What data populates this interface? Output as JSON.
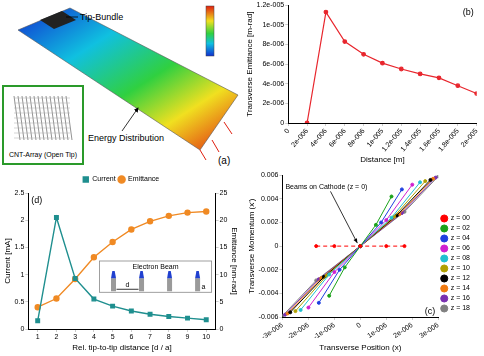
{
  "figure_a": {
    "panel_label": "(a)",
    "tip_label": "Tip-Bundle",
    "inset_label": "CNT-Array (Open Tip)",
    "energy_label": "Energy Distribution"
  },
  "chart_data": [
    {
      "type": "line",
      "panel_label": "(b)",
      "x_label": "Distance [m]",
      "y_label": "Transverse Emittance [m-rad]",
      "x": [
        2e-06,
        4e-06,
        6e-06,
        8e-06,
        1e-05,
        1.2e-05,
        1.4e-05,
        1.6e-05,
        1.8e-05,
        2e-05
      ],
      "values": [
        0,
        1.13e-05,
        8.3e-06,
        7e-06,
        6.1e-06,
        5.5e-06,
        5e-06,
        4.6e-06,
        3.8e-06,
        3e-06
      ],
      "color": "#e8262d",
      "marker": "circle",
      "grid": false,
      "xlim": [
        0,
        2e-05
      ],
      "xticks": [
        0,
        {
          "value": 2e-06,
          "label": "2e-006"
        },
        {
          "value": 4e-06,
          "label": "4e-006"
        },
        {
          "value": 6e-06,
          "label": "6e-006"
        },
        {
          "value": 8e-06,
          "label": "8e-006"
        },
        {
          "value": 1e-05,
          "label": "1e-005"
        },
        {
          "value": 1.2e-05,
          "label": "1.2e-005"
        },
        {
          "value": 1.4e-05,
          "label": "1.4e-005"
        },
        {
          "value": 1.6e-05,
          "label": "1.6e-005"
        },
        {
          "value": 1.8e-05,
          "label": "1.8e-005"
        },
        {
          "value": 2e-05,
          "label": "2e-005"
        }
      ],
      "ylim": [
        0,
        1.2e-05
      ],
      "yticks": [
        0,
        {
          "value": 2e-06,
          "label": "2e-006"
        },
        {
          "value": 4e-06,
          "label": "4e-006"
        },
        {
          "value": 6e-06,
          "label": "6e-006"
        },
        {
          "value": 8e-06,
          "label": "8e-006"
        },
        {
          "value": 1e-05,
          "label": "1e-005"
        },
        {
          "value": 1.2e-05,
          "label": "1.2e-005"
        }
      ]
    },
    {
      "type": "line",
      "panel_label": "(d)",
      "x_label": "Rel. tip-to-tip distance [d / a]",
      "y_label": "Current [mA]",
      "y2_label": "Emittance [nm-rad]",
      "x": [
        1,
        2,
        3,
        4,
        5,
        6,
        7,
        8,
        9,
        10
      ],
      "series": [
        {
          "name": "Current",
          "color": "#1f8f8f",
          "marker": "square",
          "values": [
            0.15,
            2.05,
            0.93,
            0.55,
            0.42,
            0.33,
            0.27,
            0.23,
            0.2,
            0.17
          ]
        },
        {
          "name": "Emittance",
          "color": "#f08a24",
          "marker": "circle",
          "axis": "y2",
          "values": [
            4,
            5.6,
            9.2,
            13.2,
            16,
            18.3,
            19.8,
            20.8,
            21.4,
            21.6
          ]
        }
      ],
      "xlim": [
        0.5,
        10.5
      ],
      "xticks": [
        1,
        2,
        3,
        4,
        5,
        6,
        7,
        8,
        9,
        10
      ],
      "ylim": [
        0,
        2.5
      ],
      "yticks": [
        0,
        0.5,
        1,
        1.5,
        2,
        2.5
      ],
      "y2lim": [
        0,
        25
      ],
      "y2ticks": [
        0,
        5,
        10,
        15,
        20,
        25
      ],
      "legend": "top",
      "grid": false,
      "inset": {
        "title": "Electron Beam",
        "spacing_label": "d",
        "width_label": "a"
      }
    },
    {
      "type": "scatter",
      "panel_label": "(c)",
      "x_label": "Transverse Position (x)",
      "y_label": "Transverse Momentum (x')",
      "annotation": "Beams on Cathode (z = 0)",
      "legend": "right",
      "grid": false,
      "marker": "circle",
      "series": [
        {
          "name": "z = 00",
          "color": "#ff0000",
          "line_style": "dashed",
          "x": [
            -1.7e-06,
            -1e-06,
            0,
            1e-06,
            1.7e-06
          ],
          "values": [
            0,
            0,
            0,
            0,
            0
          ]
        },
        {
          "name": "z = 02",
          "color": "#1aa31a",
          "line_style": "solid",
          "x": [
            -1.2e-06,
            -6e-07,
            0,
            6e-07,
            1.2e-06
          ],
          "values": [
            -0.0042,
            -0.0018,
            0,
            0.0018,
            0.0042
          ]
        },
        {
          "name": "z = 04",
          "color": "#1f3fe0",
          "line_style": "solid",
          "x": [
            -1.6e-06,
            -8e-07,
            0,
            8e-07,
            1.6e-06
          ],
          "values": [
            -0.0048,
            -0.002,
            0,
            0.002,
            0.0048
          ]
        },
        {
          "name": "z = 06",
          "color": "#d020d0",
          "line_style": "solid",
          "x": [
            -2e-06,
            -1e-06,
            0,
            1e-06,
            2e-06
          ],
          "values": [
            -0.0052,
            -0.0022,
            0,
            0.0022,
            0.0052
          ]
        },
        {
          "name": "z = 08",
          "color": "#20c0d0",
          "line_style": "solid",
          "x": [
            -2.3e-06,
            -1.2e-06,
            0,
            1.2e-06,
            2.3e-06
          ],
          "values": [
            -0.0054,
            -0.0024,
            0,
            0.0024,
            0.0054
          ]
        },
        {
          "name": "z = 10",
          "color": "#b0a000",
          "line_style": "solid",
          "x": [
            -2.5e-06,
            -1.3e-06,
            0,
            1.3e-06,
            2.5e-06
          ],
          "values": [
            -0.0055,
            -0.0025,
            0,
            0.0025,
            0.0055
          ]
        },
        {
          "name": "z = 12",
          "color": "#000000",
          "line_style": "solid",
          "x": [
            -2.7e-06,
            -1.4e-06,
            0,
            1.4e-06,
            2.7e-06
          ],
          "values": [
            -0.0056,
            -0.0026,
            0,
            0.0026,
            0.0056
          ]
        },
        {
          "name": "z = 14",
          "color": "#f07a10",
          "line_style": "solid",
          "x": [
            -2.8e-06,
            -1.5e-06,
            0,
            1.5e-06,
            2.8e-06
          ],
          "values": [
            -0.0057,
            -0.0027,
            0,
            0.0027,
            0.0057
          ]
        },
        {
          "name": "z = 16",
          "color": "#7a30b0",
          "line_style": "solid",
          "x": [
            -2.9e-06,
            -1.6e-06,
            0,
            1.6e-06,
            2.9e-06
          ],
          "values": [
            -0.0058,
            -0.0028,
            0,
            0.0028,
            0.0058
          ]
        },
        {
          "name": "z = 18",
          "color": "#808080",
          "line_style": "solid",
          "x": [
            -3e-06,
            -1.7e-06,
            0,
            1.7e-06,
            3e-06
          ],
          "values": [
            -0.0059,
            -0.0029,
            0,
            0.0029,
            0.0059
          ]
        }
      ],
      "xlim": [
        -3e-06,
        3e-06
      ],
      "xticks": [
        {
          "value": -3e-06,
          "label": "-3e-006"
        },
        {
          "value": -2e-06,
          "label": "-2e-006"
        },
        {
          "value": -1e-06,
          "label": "-1e-006"
        },
        0,
        {
          "value": 1e-06,
          "label": "1e-006"
        },
        {
          "value": 2e-06,
          "label": "2e-006"
        },
        {
          "value": 3e-06,
          "label": "3e-006"
        }
      ],
      "ylim": [
        -0.006,
        0.006
      ],
      "yticks": [
        -0.006,
        -0.004,
        -0.002,
        0,
        0.002,
        0.004,
        0.006
      ]
    }
  ]
}
